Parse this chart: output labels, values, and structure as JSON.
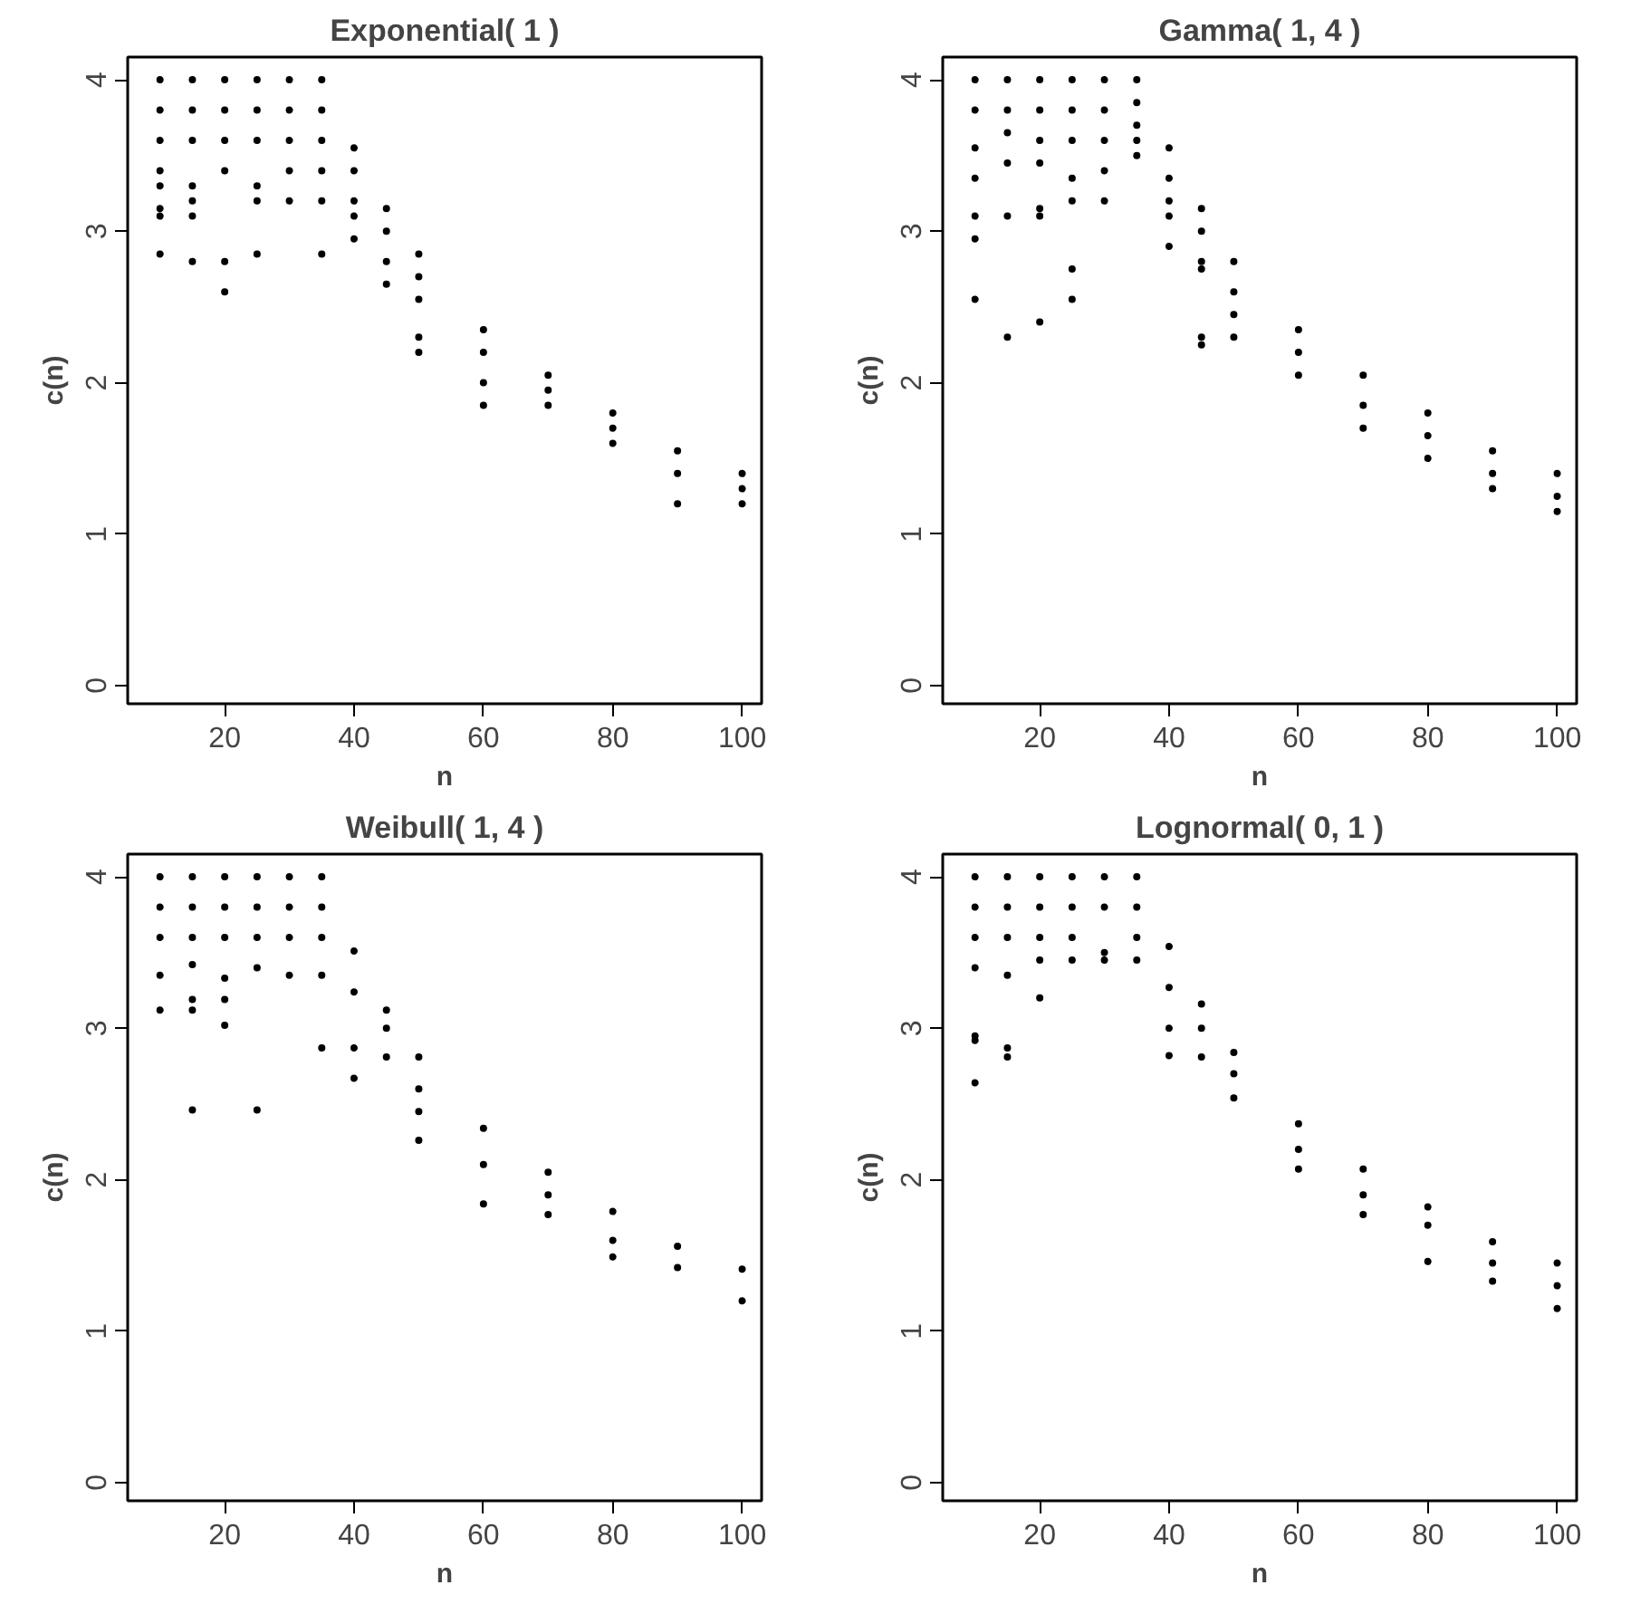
{
  "chart_data": [
    {
      "type": "scatter",
      "title": "Exponential( 1 )",
      "xlabel": "n",
      "ylabel": "c(n)",
      "marker": "circle",
      "color": "#000000",
      "xlim": [
        5,
        103
      ],
      "ylim": [
        -0.12,
        4.15
      ],
      "xticks": [
        20,
        40,
        60,
        80,
        100
      ],
      "yticks": [
        0,
        1,
        2,
        3,
        4
      ],
      "grid": false,
      "x": [
        10,
        10,
        10,
        10,
        10,
        10,
        10,
        10,
        15,
        15,
        15,
        15,
        15,
        15,
        15,
        20,
        20,
        20,
        20,
        20,
        20,
        25,
        25,
        25,
        25,
        25,
        25,
        30,
        30,
        30,
        30,
        30,
        35,
        35,
        35,
        35,
        35,
        35,
        40,
        40,
        40,
        40,
        40,
        45,
        45,
        45,
        45,
        50,
        50,
        50,
        50,
        50,
        60,
        60,
        60,
        60,
        70,
        70,
        70,
        80,
        80,
        80,
        90,
        90,
        90,
        100,
        100,
        100
      ],
      "values": [
        4.0,
        3.8,
        3.6,
        3.4,
        3.3,
        3.15,
        3.1,
        2.85,
        4.0,
        3.8,
        3.6,
        3.3,
        3.2,
        3.1,
        2.8,
        4.0,
        3.8,
        3.6,
        3.4,
        2.8,
        2.6,
        4.0,
        3.8,
        3.6,
        3.3,
        3.2,
        2.85,
        4.0,
        3.8,
        3.6,
        3.4,
        3.2,
        4.0,
        3.8,
        3.6,
        3.4,
        3.2,
        2.85,
        3.55,
        3.4,
        3.2,
        3.1,
        2.95,
        3.15,
        3.0,
        2.8,
        2.65,
        2.85,
        2.7,
        2.55,
        2.3,
        2.2,
        2.35,
        2.2,
        2.0,
        1.85,
        2.05,
        1.95,
        1.85,
        1.8,
        1.7,
        1.6,
        1.55,
        1.4,
        1.2,
        1.4,
        1.3,
        1.2
      ]
    },
    {
      "type": "scatter",
      "title": "Gamma( 1, 4 )",
      "xlabel": "n",
      "ylabel": "c(n)",
      "marker": "circle",
      "color": "#000000",
      "xlim": [
        5,
        103
      ],
      "ylim": [
        -0.12,
        4.15
      ],
      "xticks": [
        20,
        40,
        60,
        80,
        100
      ],
      "yticks": [
        0,
        1,
        2,
        3,
        4
      ],
      "grid": false,
      "x": [
        10,
        10,
        10,
        10,
        10,
        10,
        10,
        15,
        15,
        15,
        15,
        15,
        15,
        20,
        20,
        20,
        20,
        20,
        20,
        20,
        25,
        25,
        25,
        25,
        25,
        25,
        25,
        30,
        30,
        30,
        30,
        30,
        35,
        35,
        35,
        35,
        35,
        40,
        40,
        40,
        40,
        40,
        45,
        45,
        45,
        45,
        45,
        45,
        50,
        50,
        50,
        50,
        60,
        60,
        60,
        70,
        70,
        70,
        80,
        80,
        80,
        90,
        90,
        90,
        100,
        100,
        100
      ],
      "values": [
        4.0,
        3.8,
        3.55,
        3.35,
        3.1,
        2.95,
        2.55,
        4.0,
        3.8,
        3.65,
        3.45,
        3.1,
        2.3,
        4.0,
        3.8,
        3.6,
        3.45,
        3.15,
        3.1,
        2.4,
        4.0,
        3.8,
        3.6,
        3.35,
        3.2,
        2.75,
        2.55,
        4.0,
        3.8,
        3.6,
        3.4,
        3.2,
        4.0,
        3.85,
        3.7,
        3.6,
        3.5,
        3.55,
        3.35,
        3.2,
        3.1,
        2.9,
        3.15,
        3.0,
        2.8,
        2.75,
        2.3,
        2.25,
        2.8,
        2.6,
        2.45,
        2.3,
        2.35,
        2.2,
        2.05,
        2.05,
        1.85,
        1.7,
        1.8,
        1.65,
        1.5,
        1.55,
        1.4,
        1.3,
        1.4,
        1.25,
        1.15
      ]
    },
    {
      "type": "scatter",
      "title": "Weibull( 1, 4 )",
      "xlabel": "n",
      "ylabel": "c(n)",
      "marker": "circle",
      "color": "#000000",
      "xlim": [
        5,
        103
      ],
      "ylim": [
        -0.12,
        4.15
      ],
      "xticks": [
        20,
        40,
        60,
        80,
        100
      ],
      "yticks": [
        0,
        1,
        2,
        3,
        4
      ],
      "grid": false,
      "x": [
        10,
        10,
        10,
        10,
        10,
        15,
        15,
        15,
        15,
        15,
        15,
        15,
        20,
        20,
        20,
        20,
        20,
        20,
        25,
        25,
        25,
        25,
        25,
        30,
        30,
        30,
        30,
        35,
        35,
        35,
        35,
        35,
        40,
        40,
        40,
        40,
        45,
        45,
        45,
        50,
        50,
        50,
        50,
        60,
        60,
        60,
        70,
        70,
        70,
        80,
        80,
        80,
        90,
        90,
        100,
        100
      ],
      "values": [
        4.0,
        3.8,
        3.6,
        3.35,
        3.12,
        4.0,
        3.8,
        3.6,
        3.42,
        3.19,
        3.12,
        2.46,
        4.0,
        3.8,
        3.6,
        3.33,
        3.19,
        3.02,
        4.0,
        3.8,
        3.6,
        3.4,
        2.46,
        4.0,
        3.8,
        3.6,
        3.35,
        4.0,
        3.8,
        3.6,
        3.35,
        2.87,
        3.51,
        3.24,
        2.87,
        2.67,
        3.12,
        3.0,
        2.81,
        2.81,
        2.6,
        2.45,
        2.26,
        2.34,
        2.1,
        1.84,
        2.05,
        1.9,
        1.77,
        1.79,
        1.6,
        1.49,
        1.56,
        1.42,
        1.41,
        1.2
      ]
    },
    {
      "type": "scatter",
      "title": "Lognormal( 0, 1 )",
      "xlabel": "n",
      "ylabel": "c(n)",
      "marker": "circle",
      "color": "#000000",
      "xlim": [
        5,
        103
      ],
      "ylim": [
        -0.12,
        4.15
      ],
      "xticks": [
        20,
        40,
        60,
        80,
        100
      ],
      "yticks": [
        0,
        1,
        2,
        3,
        4
      ],
      "grid": false,
      "x": [
        10,
        10,
        10,
        10,
        10,
        10,
        10,
        15,
        15,
        15,
        15,
        15,
        15,
        20,
        20,
        20,
        20,
        20,
        25,
        25,
        25,
        25,
        30,
        30,
        30,
        30,
        35,
        35,
        35,
        35,
        40,
        40,
        40,
        40,
        45,
        45,
        45,
        50,
        50,
        50,
        60,
        60,
        60,
        70,
        70,
        70,
        80,
        80,
        80,
        90,
        90,
        90,
        100,
        100,
        100
      ],
      "values": [
        4.0,
        3.8,
        3.6,
        3.4,
        2.95,
        2.92,
        2.64,
        4.0,
        3.8,
        3.6,
        3.35,
        2.87,
        2.81,
        4.0,
        3.8,
        3.6,
        3.45,
        3.2,
        4.0,
        3.8,
        3.6,
        3.45,
        4.0,
        3.8,
        3.5,
        3.45,
        4.0,
        3.8,
        3.6,
        3.45,
        3.54,
        3.27,
        3.0,
        2.82,
        3.16,
        3.0,
        2.81,
        2.84,
        2.7,
        2.54,
        2.37,
        2.2,
        2.07,
        2.07,
        1.9,
        1.77,
        1.82,
        1.7,
        1.46,
        1.59,
        1.45,
        1.33,
        1.45,
        1.3,
        1.15
      ]
    }
  ]
}
